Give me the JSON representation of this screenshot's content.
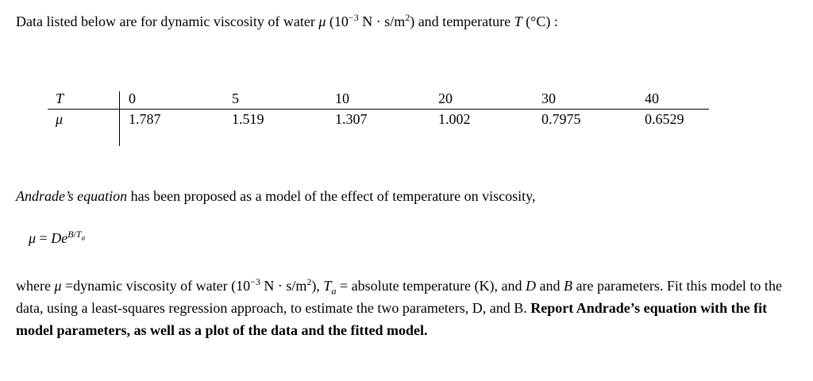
{
  "intro": [
    "Data listed below are for dynamic viscosity of water ",
    "μ",
    " (10",
    "−3",
    " N · s/m",
    "2",
    ") and temperature ",
    "T",
    " (°C) :"
  ],
  "table": {
    "row_labels": [
      "T",
      "μ"
    ],
    "rows": [
      [
        0,
        5,
        10,
        20,
        30,
        40
      ],
      [
        1.787,
        1.519,
        1.307,
        1.002,
        0.7975,
        0.6529
      ]
    ]
  },
  "model_intro": [
    "Andrade’s equation",
    " has been proposed as a model of the effect of temperature on viscosity,"
  ],
  "equation": [
    "μ",
    " = ",
    "De",
    "B",
    "/",
    "T",
    "a"
  ],
  "task": [
    "where ",
    "μ",
    " =dynamic viscosity of water (10",
    "−3",
    " N · s/m",
    "2",
    "), ",
    "T",
    "a",
    " = absolute temperature (K), and ",
    "D",
    " and ",
    "B",
    " are parameters. Fit this model to the data, using a least-squares regression approach, to estimate the two parameters, D, and B. ",
    "Report Andrade’s equation with the fit model parameters, as well as a plot of the data and the fitted model."
  ]
}
